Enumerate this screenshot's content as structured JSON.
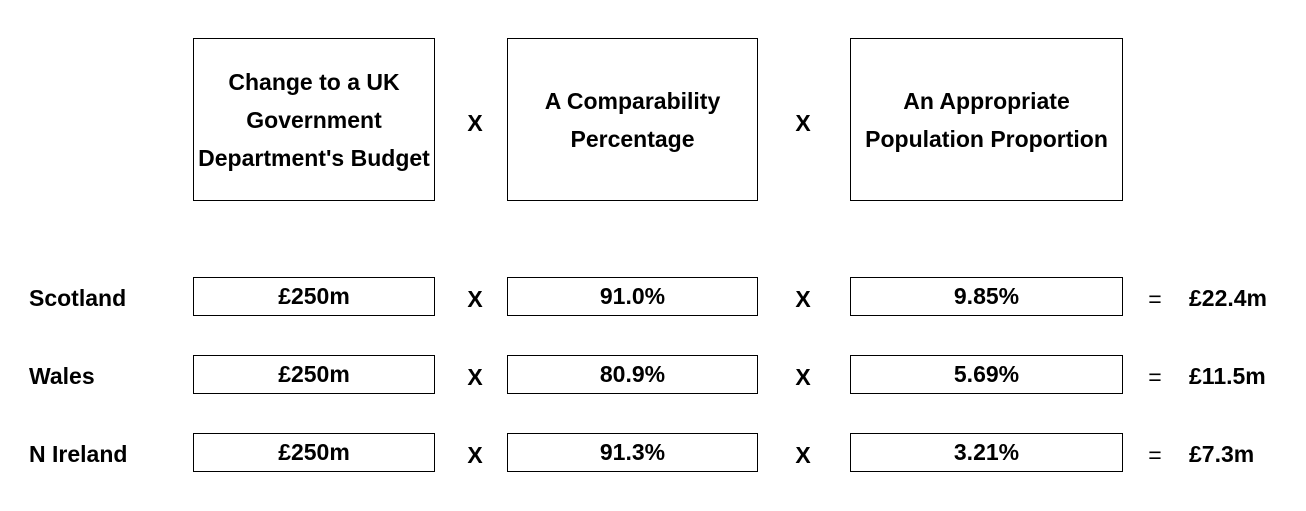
{
  "header": {
    "col1": "Change to a UK Government Department's Budget",
    "col2": "A Comparability Percentage",
    "col3": "An Appropriate Population Proportion",
    "op1": "X",
    "op2": "X"
  },
  "rows": [
    {
      "label": "Scotland",
      "budget": "£250m",
      "comparability": "91.0%",
      "population": "9.85%",
      "op1": "X",
      "op2": "X",
      "eq": "=",
      "result": "£22.4m"
    },
    {
      "label": "Wales",
      "budget": "£250m",
      "comparability": "80.9%",
      "population": "5.69%",
      "op1": "X",
      "op2": "X",
      "eq": "=",
      "result": "£11.5m"
    },
    {
      "label": "N Ireland",
      "budget": "£250m",
      "comparability": "91.3%",
      "population": "3.21%",
      "op1": "X",
      "op2": "X",
      "eq": "=",
      "result": "£7.3m"
    }
  ]
}
